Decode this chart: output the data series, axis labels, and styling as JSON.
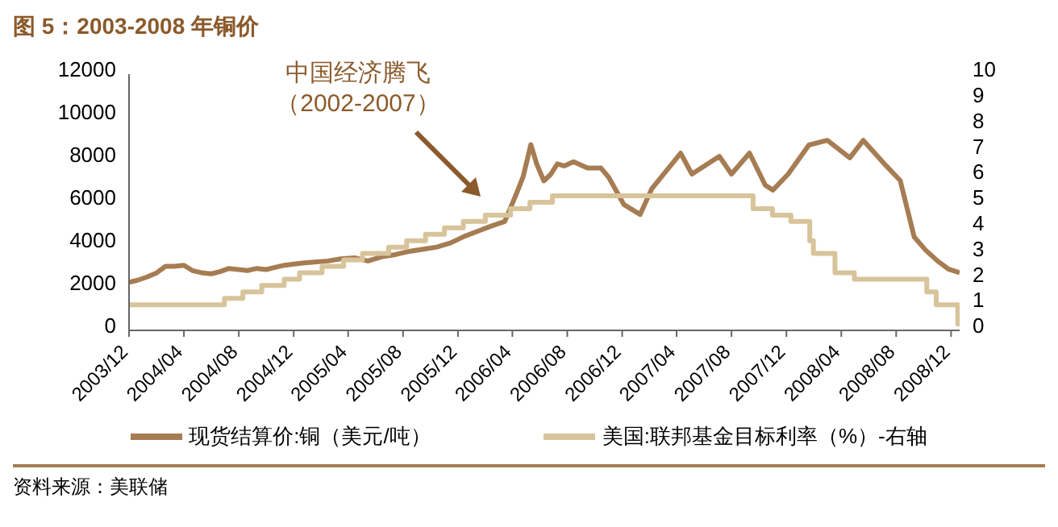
{
  "chart_data": {
    "type": "line",
    "title": "图 5：2003-2008 年铜价",
    "xlim": [
      "2003-12-01",
      "2008-12-20"
    ],
    "xticks": [
      {
        "value": "2003-12-01",
        "label": "2003/12"
      },
      {
        "value": "2004-04-01",
        "label": "2004/04"
      },
      {
        "value": "2004-08-01",
        "label": "2004/08"
      },
      {
        "value": "2004-12-01",
        "label": "2004/12"
      },
      {
        "value": "2005-04-01",
        "label": "2005/04"
      },
      {
        "value": "2005-08-01",
        "label": "2005/08"
      },
      {
        "value": "2005-12-01",
        "label": "2005/12"
      },
      {
        "value": "2006-04-01",
        "label": "2006/04"
      },
      {
        "value": "2006-08-01",
        "label": "2006/08"
      },
      {
        "value": "2006-12-01",
        "label": "2006/12"
      },
      {
        "value": "2007-04-01",
        "label": "2007/04"
      },
      {
        "value": "2007-08-01",
        "label": "2007/08"
      },
      {
        "value": "2007-12-01",
        "label": "2007/12"
      },
      {
        "value": "2008-04-01",
        "label": "2008/04"
      },
      {
        "value": "2008-08-01",
        "label": "2008/08"
      },
      {
        "value": "2008-12-01",
        "label": "2008/12"
      }
    ],
    "ylim": [
      0,
      12000
    ],
    "yticks": [
      0,
      2000,
      4000,
      6000,
      8000,
      10000,
      12000
    ],
    "y2lim": [
      0,
      10
    ],
    "y2ticks": [
      0,
      1,
      2,
      3,
      4,
      5,
      6,
      7,
      8,
      9,
      10
    ],
    "grid": false,
    "legend": "bottom",
    "marker": "none",
    "line_style": "solid",
    "annotations": [
      "中国经济腾飞（2002-2007）",
      "资料来源：美联储"
    ],
    "series": [
      {
        "name": "现货结算价:铜（美元/吨）",
        "color": "#a67c52",
        "x": [
          "2003-12-01",
          "2003-12-20",
          "2004-01-10",
          "2004-02-01",
          "2004-02-20",
          "2004-03-10",
          "2004-04-01",
          "2004-04-20",
          "2004-05-10",
          "2004-06-01",
          "2004-06-20",
          "2004-07-10",
          "2004-08-01",
          "2004-08-20",
          "2004-09-10",
          "2004-10-01",
          "2004-10-20",
          "2004-11-10",
          "2004-12-01",
          "2004-12-20",
          "2005-01-15",
          "2005-02-15",
          "2005-03-15",
          "2005-04-15",
          "2005-05-15",
          "2005-06-15",
          "2005-07-15",
          "2005-08-15",
          "2005-09-15",
          "2005-10-15",
          "2005-11-15",
          "2005-12-15",
          "2006-01-15",
          "2006-02-15",
          "2006-03-15",
          "2006-04-10",
          "2006-04-25",
          "2006-05-12",
          "2006-05-25",
          "2006-06-10",
          "2006-06-25",
          "2006-07-10",
          "2006-07-25",
          "2006-08-15",
          "2006-09-15",
          "2006-10-15",
          "2006-11-01",
          "2006-12-05",
          "2007-01-10",
          "2007-02-05",
          "2007-04-10",
          "2007-05-05",
          "2007-07-05",
          "2007-08-01",
          "2007-09-10",
          "2007-10-15",
          "2007-11-01",
          "2007-12-05",
          "2008-01-20",
          "2008-03-01",
          "2008-04-20",
          "2008-05-20",
          "2008-07-10",
          "2008-08-10",
          "2008-09-10",
          "2008-10-05",
          "2008-11-01",
          "2008-11-25",
          "2008-12-20"
        ],
        "values": [
          2250,
          2350,
          2500,
          2700,
          3000,
          3000,
          3050,
          2800,
          2700,
          2650,
          2750,
          2900,
          2850,
          2800,
          2900,
          2850,
          2950,
          3050,
          3100,
          3150,
          3200,
          3250,
          3350,
          3400,
          3250,
          3450,
          3550,
          3700,
          3800,
          3900,
          4100,
          4400,
          4650,
          4900,
          5100,
          6400,
          7200,
          8700,
          7800,
          7000,
          7300,
          7800,
          7700,
          7900,
          7600,
          7600,
          7170,
          5890,
          5430,
          6640,
          8300,
          7320,
          8150,
          7320,
          8300,
          6800,
          6570,
          7320,
          8680,
          8900,
          8080,
          8900,
          7700,
          7020,
          4380,
          3770,
          3250,
          2870,
          2700
        ]
      },
      {
        "name": "美国:联邦基金目标利率（%）-右轴",
        "color": "#d8c49a",
        "type": "step",
        "axis": "y2",
        "x": [
          "2003-12-01",
          "2004-06-30",
          "2004-08-10",
          "2004-09-21",
          "2004-11-10",
          "2004-12-14",
          "2005-02-02",
          "2005-03-22",
          "2005-05-03",
          "2005-06-30",
          "2005-08-09",
          "2005-09-20",
          "2005-11-01",
          "2005-12-13",
          "2006-01-31",
          "2006-03-28",
          "2006-05-10",
          "2006-06-29",
          "2007-09-18",
          "2007-10-31",
          "2007-12-11",
          "2008-01-22",
          "2008-01-30",
          "2008-03-18",
          "2008-04-30",
          "2008-10-08",
          "2008-10-29",
          "2008-12-16",
          "2008-12-20"
        ],
        "values": [
          1,
          1.25,
          1.5,
          1.75,
          2,
          2.25,
          2.5,
          2.75,
          3,
          3.25,
          3.5,
          3.75,
          4,
          4.25,
          4.5,
          4.75,
          5,
          5.25,
          4.75,
          4.5,
          4.25,
          3.5,
          3,
          2.25,
          2,
          1.5,
          1,
          0.25,
          0.25
        ]
      }
    ]
  }
}
